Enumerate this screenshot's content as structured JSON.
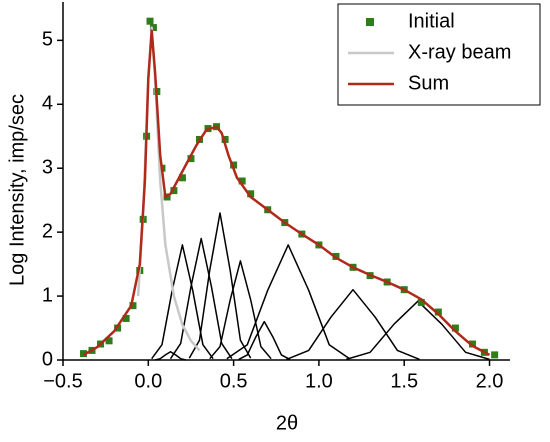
{
  "chart_data": {
    "type": "line",
    "xlabel": "2θ",
    "ylabel": "Log Intensity, imp/sec",
    "xlim": [
      -0.5,
      2.12
    ],
    "ylim": [
      0,
      5.6
    ],
    "xticks": [
      {
        "value": -0.5,
        "label": "−0.5"
      },
      {
        "value": 0,
        "label": "0.0"
      },
      {
        "value": 0.5,
        "label": "0.5"
      },
      {
        "value": 1,
        "label": "1.0"
      },
      {
        "value": 1.5,
        "label": "1.5"
      },
      {
        "value": 2,
        "label": "2.0"
      }
    ],
    "yticks": [
      0,
      1,
      2,
      3,
      4,
      5
    ],
    "legend": "upper right",
    "series": [
      {
        "type": "line",
        "color": "#000000",
        "x": [
          0.04,
          0.07,
          0.1,
          0.13,
          0.16,
          0.19,
          0.22
        ],
        "values": [
          0,
          0.02,
          0.08,
          0.13,
          0.08,
          0.02,
          0
        ]
      },
      {
        "type": "line",
        "color": "#000000",
        "x": [
          0.02,
          0.08,
          0.14,
          0.2,
          0.26,
          0.32,
          0.38
        ],
        "values": [
          0.02,
          0.24,
          1.09,
          1.8,
          1.09,
          0.24,
          0.02
        ]
      },
      {
        "type": "line",
        "color": "#000000",
        "x": [
          0.13,
          0.19,
          0.25,
          0.31,
          0.37,
          0.43,
          0.49
        ],
        "values": [
          0.02,
          0.26,
          1.15,
          1.9,
          1.15,
          0.26,
          0.02
        ]
      },
      {
        "type": "line",
        "color": "#000000",
        "x": [
          0.24,
          0.3,
          0.36,
          0.42,
          0.48,
          0.54,
          0.6
        ],
        "values": [
          0.03,
          0.31,
          1.4,
          2.3,
          1.4,
          0.31,
          0.03
        ]
      },
      {
        "type": "line",
        "color": "#000000",
        "x": [
          0.36,
          0.42,
          0.48,
          0.54,
          0.6,
          0.66,
          0.72
        ],
        "values": [
          0.02,
          0.21,
          0.94,
          1.55,
          0.94,
          0.21,
          0.02
        ]
      },
      {
        "type": "line",
        "color": "#000000",
        "x": [
          0.53,
          0.58,
          0.63,
          0.68,
          0.73,
          0.78,
          0.83
        ],
        "values": [
          0.01,
          0.08,
          0.36,
          0.6,
          0.36,
          0.08,
          0.01
        ]
      },
      {
        "type": "line",
        "color": "#000000",
        "x": [
          0.46,
          0.58,
          0.7,
          0.82,
          0.94,
          1.06,
          1.18
        ],
        "values": [
          0.02,
          0.24,
          1.09,
          1.8,
          1.09,
          0.24,
          0.02
        ]
      },
      {
        "type": "line",
        "color": "#000000",
        "x": [
          0.81,
          0.94,
          1.07,
          1.2,
          1.33,
          1.46,
          1.59
        ],
        "values": [
          0.01,
          0.15,
          0.67,
          1.1,
          0.67,
          0.15,
          0.01
        ]
      },
      {
        "type": "line",
        "color": "#000000",
        "x": [
          1.16,
          1.3,
          1.44,
          1.58,
          1.72,
          1.86,
          2.0
        ],
        "values": [
          0.01,
          0.12,
          0.56,
          0.92,
          0.56,
          0.12,
          0.01
        ]
      },
      {
        "name": "Initial",
        "type": "scatter",
        "color": "#2e7d1a",
        "x": [
          -0.38,
          -0.33,
          -0.28,
          -0.23,
          -0.18,
          -0.13,
          -0.09,
          -0.05,
          -0.03,
          -0.01,
          0.01,
          0.03,
          0.05,
          0.08,
          0.11,
          0.15,
          0.2,
          0.25,
          0.3,
          0.35,
          0.4,
          0.45,
          0.5,
          0.55,
          0.6,
          0.7,
          0.8,
          0.9,
          1.0,
          1.1,
          1.2,
          1.3,
          1.4,
          1.5,
          1.6,
          1.7,
          1.8,
          1.9,
          1.97,
          2.03
        ],
        "values": [
          0.1,
          0.15,
          0.25,
          0.3,
          0.5,
          0.65,
          0.85,
          1.4,
          2.2,
          3.5,
          5.3,
          5.2,
          4.2,
          3.0,
          2.55,
          2.65,
          2.85,
          3.15,
          3.45,
          3.62,
          3.65,
          3.45,
          3.05,
          2.8,
          2.6,
          2.35,
          2.15,
          1.97,
          1.8,
          1.62,
          1.45,
          1.32,
          1.22,
          1.1,
          0.9,
          0.75,
          0.5,
          0.25,
          0.12,
          0.08
        ]
      },
      {
        "name": "X-ray beam",
        "type": "line",
        "color": "#c8c8c8",
        "x": [
          -0.06,
          -0.03,
          0,
          0.02,
          0.04,
          0.07,
          0.1,
          0.15,
          0.2,
          0.25,
          0.3
        ],
        "values": [
          1.0,
          2.3,
          4.4,
          5.2,
          4.4,
          2.8,
          1.8,
          1.0,
          0.55,
          0.3,
          0.15
        ]
      },
      {
        "name": "Sum",
        "type": "line",
        "color": "#b02a1a",
        "x": [
          -0.38,
          -0.3,
          -0.2,
          -0.1,
          -0.05,
          -0.02,
          0,
          0.02,
          0.04,
          0.07,
          0.1,
          0.13,
          0.17,
          0.22,
          0.28,
          0.34,
          0.4,
          0.43,
          0.47,
          0.52,
          0.6,
          0.7,
          0.8,
          0.9,
          1.0,
          1.1,
          1.2,
          1.3,
          1.4,
          1.5,
          1.6,
          1.7,
          1.8,
          1.9,
          2.0
        ],
        "values": [
          0.08,
          0.2,
          0.45,
          0.85,
          1.5,
          2.8,
          4.4,
          5.15,
          4.5,
          3.2,
          2.55,
          2.6,
          2.8,
          3.05,
          3.35,
          3.6,
          3.65,
          3.55,
          3.2,
          2.85,
          2.55,
          2.35,
          2.15,
          1.97,
          1.8,
          1.6,
          1.45,
          1.33,
          1.22,
          1.1,
          0.95,
          0.72,
          0.45,
          0.22,
          0.08
        ]
      }
    ]
  }
}
